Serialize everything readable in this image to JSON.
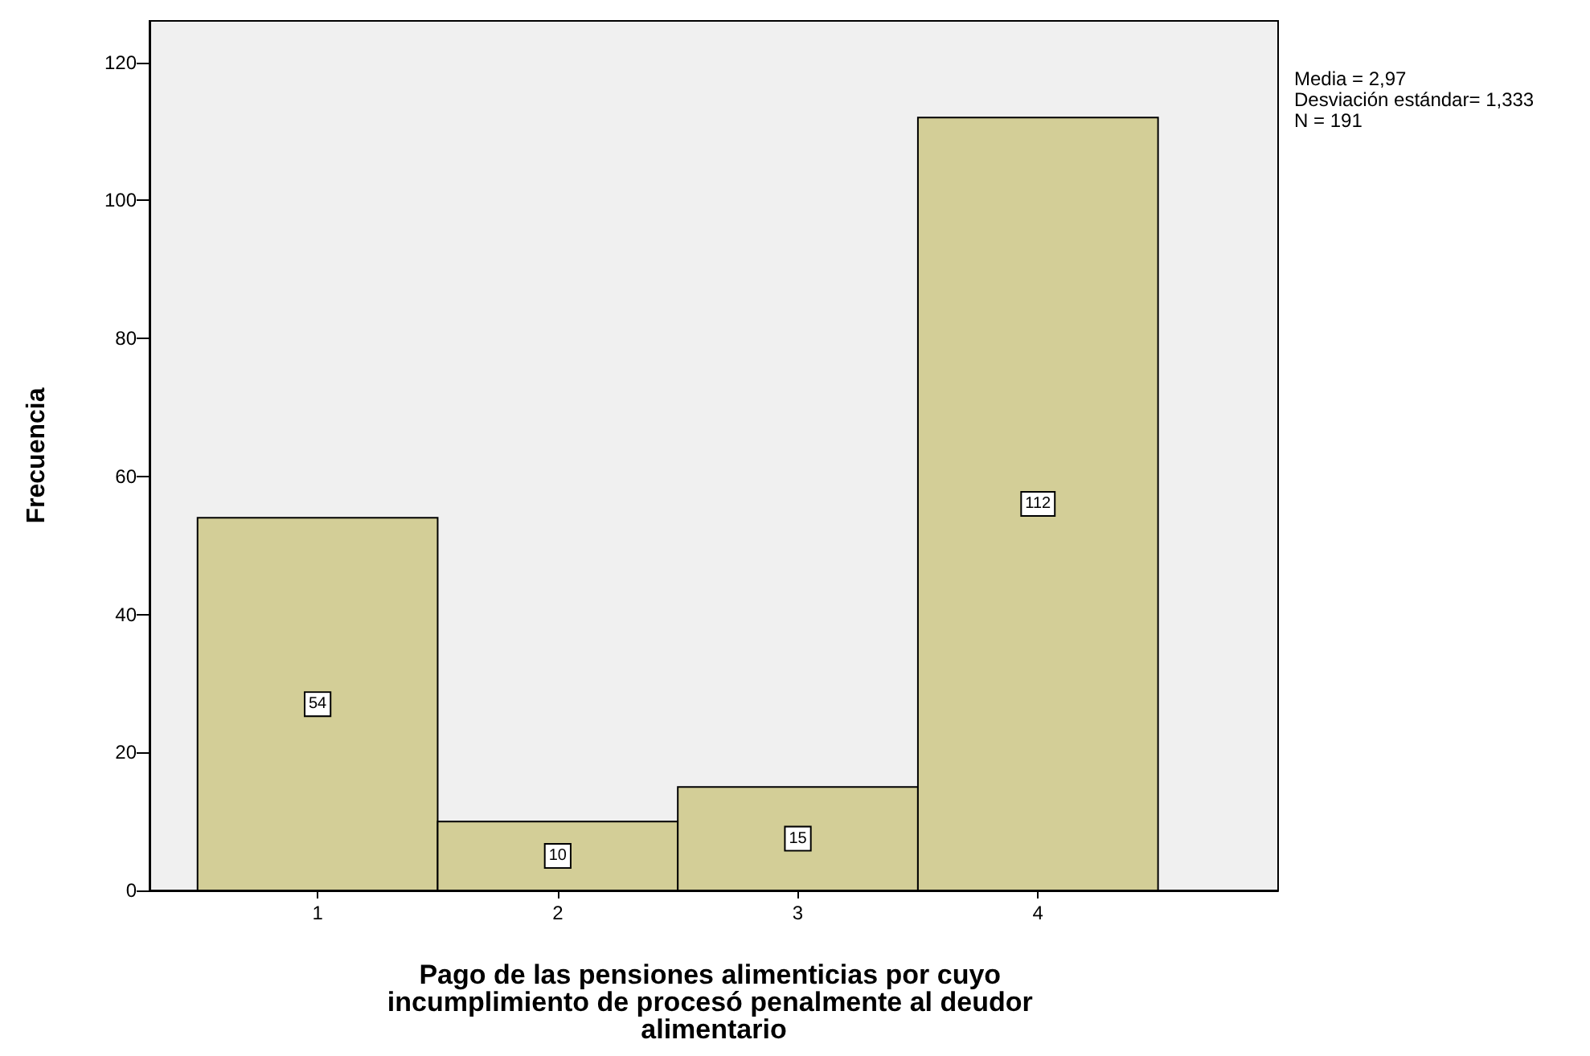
{
  "chart_data": {
    "type": "histogram",
    "xlabel": "Pago de las pensiones alimenticias por cuyo incumplimiento de procesó penalmente al deudor alimentario",
    "ylabel": "Frecuencia",
    "bins": [
      0.5,
      1.5,
      2.5,
      3.5,
      4.5
    ],
    "values": [
      54,
      10,
      15,
      112
    ],
    "color": "#d3ce97",
    "xlim": [
      0.3,
      5.0
    ],
    "xticks": [
      1,
      2,
      3,
      4
    ],
    "ylim": [
      0,
      126
    ],
    "yticks": [
      0,
      20,
      40,
      60,
      80,
      100,
      120
    ],
    "data_labels": true,
    "grid": false,
    "annotations": [
      "Media = 2,97",
      "Desviación estándar= 1,333",
      "N = 191"
    ]
  }
}
